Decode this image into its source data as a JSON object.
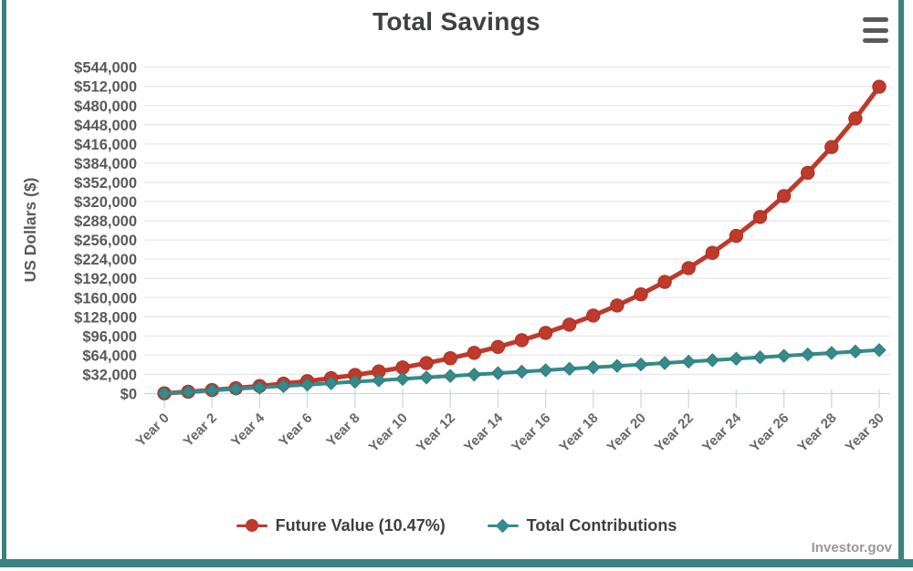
{
  "chart": {
    "title": "Total Savings",
    "y_axis_title": "US Dollars ($)",
    "watermark": "Investor.gov",
    "menu_icon": "hamburger-menu-icon"
  },
  "legend": {
    "items": [
      {
        "label": "Future Value (10.47%)",
        "color": "#bf3a2b",
        "marker": "circle"
      },
      {
        "label": "Total Contributions",
        "color": "#358b8b",
        "marker": "diamond"
      }
    ]
  },
  "colors": {
    "frame_teal": "#3a8281",
    "future_value_red": "#bf3a2b",
    "future_value_red_edge": "#a53325",
    "contributions_teal": "#358b8b",
    "contributions_teal_edge": "#2e7a7a",
    "gridline_gray": "#e7e7e7",
    "axis_blue": "#cdd7e5",
    "y_label_gray": "#58595b",
    "x_label_gray": "#66686a",
    "title_gray": "#3f4041"
  },
  "chart_data": {
    "type": "line",
    "title": "Total Savings",
    "xlabel": "",
    "ylabel": "US Dollars ($)",
    "x": [
      0,
      1,
      2,
      3,
      4,
      5,
      6,
      7,
      8,
      9,
      10,
      11,
      12,
      13,
      14,
      15,
      16,
      17,
      18,
      19,
      20,
      21,
      22,
      23,
      24,
      25,
      26,
      27,
      28,
      29,
      30
    ],
    "x_tick_labels": [
      "Year 0",
      "Year 2",
      "Year 4",
      "Year 6",
      "Year 8",
      "Year 10",
      "Year 12",
      "Year 14",
      "Year 16",
      "Year 18",
      "Year 20",
      "Year 22",
      "Year 24",
      "Year 26",
      "Year 28",
      "Year 30"
    ],
    "y_ticks": [
      0,
      32000,
      64000,
      96000,
      128000,
      160000,
      192000,
      224000,
      256000,
      288000,
      320000,
      352000,
      384000,
      416000,
      448000,
      480000,
      512000,
      544000
    ],
    "y_tick_labels": [
      "$0",
      "$32,000",
      "$64,000",
      "$96,000",
      "$128,000",
      "$160,000",
      "$192,000",
      "$224,000",
      "$256,000",
      "$288,000",
      "$320,000",
      "$352,000",
      "$384,000",
      "$416,000",
      "$448,000",
      "$480,000",
      "$512,000",
      "$544,000"
    ],
    "ylim": [
      0,
      544000
    ],
    "grid": "horizontal",
    "legend_position": "bottom",
    "series": [
      {
        "name": "Future Value (10.47%)",
        "marker": "circle",
        "color": "#bf3a2b",
        "values": [
          500,
          3074,
          5930,
          9100,
          12618,
          16523,
          20857,
          25668,
          31006,
          36931,
          43506,
          50807,
          58907,
          67896,
          77873,
          88948,
          101241,
          114881,
          130023,
          146827,
          165478,
          186179,
          209152,
          234653,
          262950,
          294361,
          329221,
          367911,
          410854,
          458511,
          511408
        ]
      },
      {
        "name": "Total Contributions",
        "marker": "diamond",
        "color": "#358b8b",
        "values": [
          500,
          2900,
          5300,
          7700,
          10100,
          12500,
          14900,
          17300,
          19700,
          22100,
          24500,
          26900,
          29300,
          31700,
          34100,
          36500,
          38900,
          41300,
          43700,
          46100,
          48500,
          50900,
          53300,
          55700,
          58100,
          60500,
          62900,
          65300,
          67700,
          70100,
          72500
        ]
      }
    ]
  }
}
